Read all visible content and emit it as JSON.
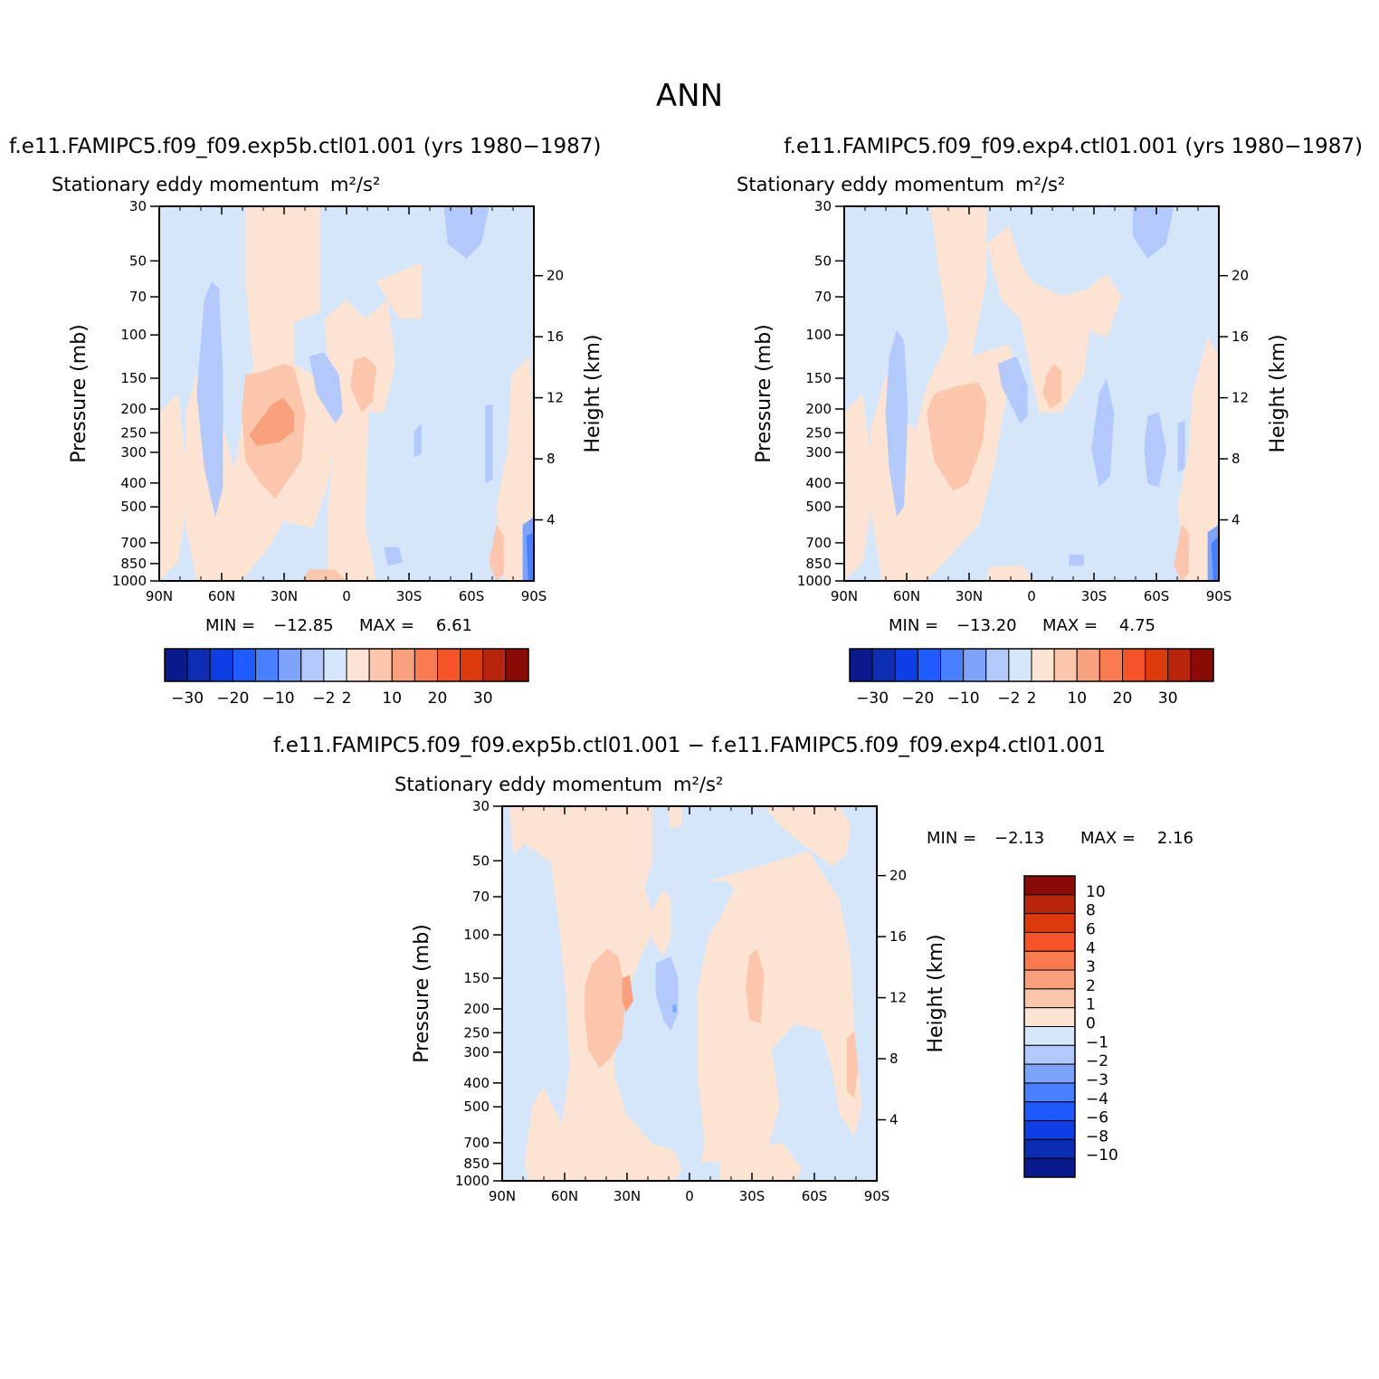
{
  "figure": {
    "title": "ANN"
  },
  "colors": {
    "palette": [
      "#0a1a8c",
      "#0b2fb0",
      "#0d3ee6",
      "#1f5cff",
      "#4680ff",
      "#7ea3fb",
      "#b3c9fb",
      "#d6e6fa",
      "#fde4d2",
      "#fcc6ad",
      "#f9a07c",
      "#f87a4e",
      "#f65427",
      "#dc3a0d",
      "#b8250b",
      "#8a0b06"
    ],
    "outline": "#000000"
  },
  "chart_data": [
    {
      "type": "heatmap",
      "id": "panel-left",
      "case_title": "f.e11.FAMIPC5.f09_f09.exp5b.ctl01.001 (yrs 1980−1987)",
      "var_title": "Stationary eddy momentum",
      "units": "m²/s²",
      "x_ticks": [
        "90N",
        "60N",
        "30N",
        "0",
        "30S",
        "60S",
        "90S"
      ],
      "y_ticks": [
        "30",
        "50",
        "70",
        "100",
        "150",
        "200",
        "250",
        "300",
        "400",
        "500",
        "700",
        "850",
        "1000"
      ],
      "height_ticks": [
        "20",
        "16",
        "12",
        "8",
        "4"
      ],
      "ylabel": "Pressure (mb)",
      "ylabel_right": "Height (km)",
      "min_label": "MIN =",
      "min_value": "−12.85",
      "max_label": "MAX =",
      "max_value": "6.61",
      "colorbar_levels": [
        -30,
        -25,
        -20,
        -15,
        -10,
        -5,
        -2,
        0,
        2,
        5,
        10,
        15,
        20,
        25,
        30
      ],
      "colorbar_labels": [
        "−30",
        "−20",
        "−10",
        "−2",
        "2",
        "10",
        "20",
        "30"
      ]
    },
    {
      "type": "heatmap",
      "id": "panel-right",
      "case_title": "f.e11.FAMIPC5.f09_f09.exp4.ctl01.001 (yrs 1980−1987)",
      "var_title": "Stationary eddy momentum",
      "units": "m²/s²",
      "x_ticks": [
        "90N",
        "60N",
        "30N",
        "0",
        "30S",
        "60S",
        "90S"
      ],
      "y_ticks": [
        "30",
        "50",
        "70",
        "100",
        "150",
        "200",
        "250",
        "300",
        "400",
        "500",
        "700",
        "850",
        "1000"
      ],
      "height_ticks": [
        "20",
        "16",
        "12",
        "8",
        "4"
      ],
      "ylabel": "Pressure (mb)",
      "ylabel_right": "Height (km)",
      "min_label": "MIN =",
      "min_value": "−13.20",
      "max_label": "MAX =",
      "max_value": "4.75",
      "colorbar_levels": [
        -30,
        -25,
        -20,
        -15,
        -10,
        -5,
        -2,
        0,
        2,
        5,
        10,
        15,
        20,
        25,
        30
      ],
      "colorbar_labels": [
        "−30",
        "−20",
        "−10",
        "−2",
        "2",
        "10",
        "20",
        "30"
      ]
    },
    {
      "type": "heatmap",
      "id": "panel-diff",
      "case_title": "f.e11.FAMIPC5.f09_f09.exp5b.ctl01.001 − f.e11.FAMIPC5.f09_f09.exp4.ctl01.001",
      "var_title": "Stationary eddy momentum",
      "units": "m²/s²",
      "x_ticks": [
        "90N",
        "60N",
        "30N",
        "0",
        "30S",
        "60S",
        "90S"
      ],
      "y_ticks": [
        "30",
        "50",
        "70",
        "100",
        "150",
        "200",
        "250",
        "300",
        "400",
        "500",
        "700",
        "850",
        "1000"
      ],
      "height_ticks": [
        "20",
        "16",
        "12",
        "8",
        "4"
      ],
      "ylabel": "Pressure (mb)",
      "ylabel_right": "Height (km)",
      "min_label": "MIN =",
      "min_value": "−2.13",
      "max_label": "MAX =",
      "max_value": "2.16",
      "colorbar_levels": [
        10,
        8,
        6,
        4,
        3,
        2,
        1,
        0,
        -1,
        -2,
        -3,
        -4,
        -6,
        -8,
        -10
      ],
      "colorbar_labels": [
        "10",
        "8",
        "6",
        "4",
        "3",
        "2",
        "1",
        "0",
        "−1",
        "−2",
        "−3",
        "−4",
        "−6",
        "−8",
        "−10"
      ]
    }
  ]
}
